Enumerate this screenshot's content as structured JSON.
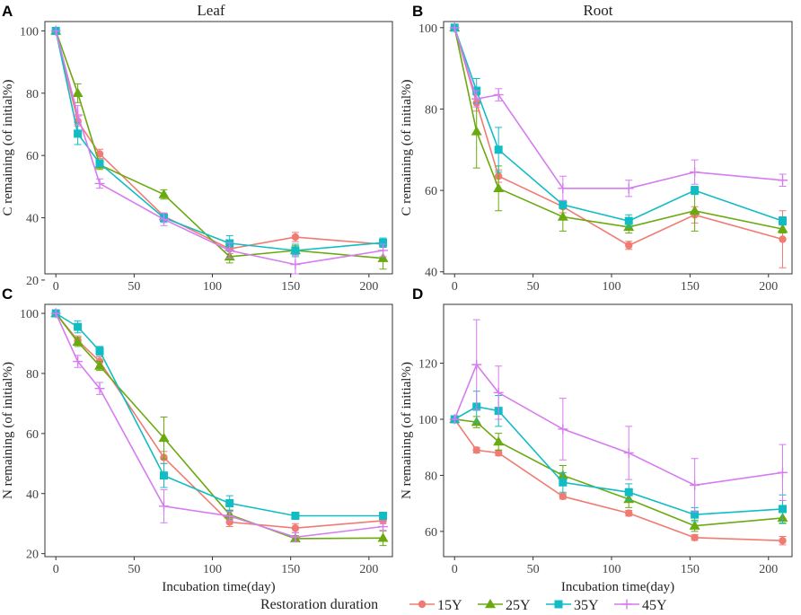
{
  "figure": {
    "column_titles": [
      "Leaf",
      "Root"
    ],
    "legend_title": "Restoration duration",
    "series_colors": {
      "15Y": "#F07B72",
      "25Y": "#6AAA10",
      "35Y": "#12BCC4",
      "45Y": "#D67BF0"
    },
    "series_markers": {
      "15Y": "circle",
      "25Y": "triangle",
      "35Y": "square",
      "45Y": "plus"
    }
  },
  "chart_data": [
    {
      "type": "line",
      "panel": "A",
      "title": "Leaf",
      "xlabel": "",
      "ylabel": "C remaining (of initial%)",
      "xlim": [
        -7,
        215
      ],
      "ylim": [
        22,
        103
      ],
      "xticks": [
        0,
        50,
        100,
        150,
        200
      ],
      "yticks": [
        20,
        40,
        60,
        80,
        100
      ],
      "x": [
        0,
        14,
        28,
        69,
        111,
        153,
        209
      ],
      "series": [
        {
          "name": "15Y",
          "values": [
            100,
            71,
            60.5,
            40.5,
            30,
            33.8,
            31.5
          ],
          "errors": [
            0,
            1.5,
            1.5,
            1,
            1.5,
            1.5,
            1
          ]
        },
        {
          "name": "25Y",
          "values": [
            100,
            80,
            57,
            47.5,
            27.5,
            29.5,
            27
          ],
          "errors": [
            0,
            3,
            1.5,
            1.5,
            2,
            1.5,
            3.5
          ]
        },
        {
          "name": "35Y",
          "values": [
            100,
            67,
            57.5,
            40,
            31.8,
            29.5,
            32
          ],
          "errors": [
            0,
            3.5,
            1,
            1.5,
            2.5,
            2,
            1.5
          ]
        },
        {
          "name": "45Y",
          "values": [
            100,
            73,
            51,
            39.5,
            29.5,
            25,
            29.5
          ],
          "errors": [
            0,
            3,
            1.5,
            2,
            2.5,
            3,
            2
          ]
        }
      ]
    },
    {
      "type": "line",
      "panel": "B",
      "title": "Root",
      "xlabel": "",
      "ylabel": "C remaining (of initial%)",
      "xlim": [
        -7,
        215
      ],
      "ylim": [
        39.5,
        101.5
      ],
      "xticks": [
        0,
        50,
        100,
        150,
        200
      ],
      "yticks": [
        40,
        60,
        80,
        100
      ],
      "x": [
        0,
        14,
        28,
        69,
        111,
        153,
        209
      ],
      "series": [
        {
          "name": "15Y",
          "values": [
            100,
            81.5,
            63.5,
            56,
            46.5,
            54,
            48
          ],
          "errors": [
            0,
            2,
            1.5,
            1.5,
            1,
            2,
            7
          ]
        },
        {
          "name": "25Y",
          "values": [
            100,
            74.5,
            60.5,
            53.5,
            51,
            55,
            50.5
          ],
          "errors": [
            0,
            9,
            5.5,
            3.5,
            1.5,
            5,
            1
          ]
        },
        {
          "name": "35Y",
          "values": [
            100,
            84.5,
            70,
            56.5,
            52.5,
            60,
            52.5
          ],
          "errors": [
            0,
            3,
            5.5,
            1,
            1.5,
            1,
            1
          ]
        },
        {
          "name": "45Y",
          "values": [
            100,
            82.5,
            83.5,
            60.5,
            60.5,
            64.5,
            62.5
          ],
          "errors": [
            0,
            2,
            1.5,
            3,
            2,
            3,
            1.5
          ]
        }
      ]
    },
    {
      "type": "line",
      "panel": "C",
      "title": "",
      "xlabel": "Incubation time(day)",
      "ylabel": "N remaining (of initial%)",
      "xlim": [
        -7,
        215
      ],
      "ylim": [
        19,
        103
      ],
      "xticks": [
        0,
        50,
        100,
        150,
        200
      ],
      "yticks": [
        20,
        40,
        60,
        80,
        100
      ],
      "x": [
        0,
        14,
        28,
        69,
        111,
        153,
        209
      ],
      "series": [
        {
          "name": "15Y",
          "values": [
            100,
            91,
            84,
            52,
            30.5,
            28.5,
            31
          ],
          "errors": [
            0,
            1.5,
            1.5,
            2,
            1.5,
            1.5,
            1
          ]
        },
        {
          "name": "25Y",
          "values": [
            100,
            90.5,
            82.5,
            58.5,
            33,
            25,
            25.2
          ],
          "errors": [
            0,
            1.5,
            1.5,
            7,
            1.5,
            1,
            2.5
          ]
        },
        {
          "name": "35Y",
          "values": [
            100,
            95.5,
            87.5,
            46,
            36.8,
            32.6,
            32.6
          ],
          "errors": [
            0,
            2,
            1.5,
            4,
            2.5,
            1,
            1
          ]
        },
        {
          "name": "45Y",
          "values": [
            100,
            84,
            75,
            35.8,
            32.5,
            25.5,
            29
          ],
          "errors": [
            0,
            2,
            2,
            5.5,
            1.5,
            1.5,
            1.5
          ]
        }
      ]
    },
    {
      "type": "line",
      "panel": "D",
      "title": "",
      "xlabel": "Incubation time(day)",
      "ylabel": "N remaining (of initial%)",
      "xlim": [
        -7,
        215
      ],
      "ylim": [
        51,
        141
      ],
      "xticks": [
        0,
        50,
        100,
        150,
        200
      ],
      "yticks": [
        60,
        80,
        100,
        120
      ],
      "x": [
        0,
        14,
        28,
        69,
        111,
        153,
        209
      ],
      "series": [
        {
          "name": "15Y",
          "values": [
            100,
            89,
            88,
            72.5,
            66.5,
            57.8,
            56.7
          ],
          "errors": [
            0,
            1,
            1,
            1,
            1,
            1,
            1.5
          ]
        },
        {
          "name": "25Y",
          "values": [
            100,
            99,
            92,
            80,
            71.5,
            62,
            64.8
          ],
          "errors": [
            0,
            2,
            3,
            3.5,
            3,
            2,
            2
          ]
        },
        {
          "name": "35Y",
          "values": [
            100,
            104.5,
            103,
            77.5,
            74,
            66,
            68
          ],
          "errors": [
            0,
            5.5,
            5.5,
            3.5,
            3,
            2.5,
            5
          ]
        },
        {
          "name": "45Y",
          "values": [
            100,
            119.5,
            109.5,
            96.5,
            88,
            76.5,
            81
          ],
          "errors": [
            0,
            16,
            9.5,
            11,
            9.5,
            9.5,
            10
          ]
        }
      ]
    }
  ]
}
